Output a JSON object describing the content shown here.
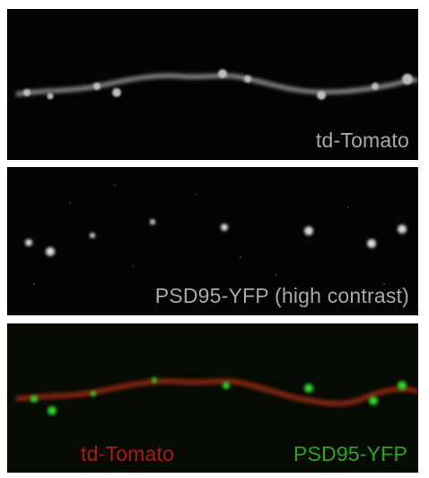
{
  "panels": [
    {
      "id": "td-tomato",
      "label": "td-Tomato"
    },
    {
      "id": "psd95",
      "label": "PSD95-YFP (high contrast)"
    },
    {
      "id": "merge",
      "label_red": "td-Tomato",
      "label_green": "PSD95-YFP"
    }
  ],
  "colors": {
    "red_channel": "#c0281a",
    "green_channel": "#2ed42a",
    "gray_text": "#a9a9a9"
  }
}
